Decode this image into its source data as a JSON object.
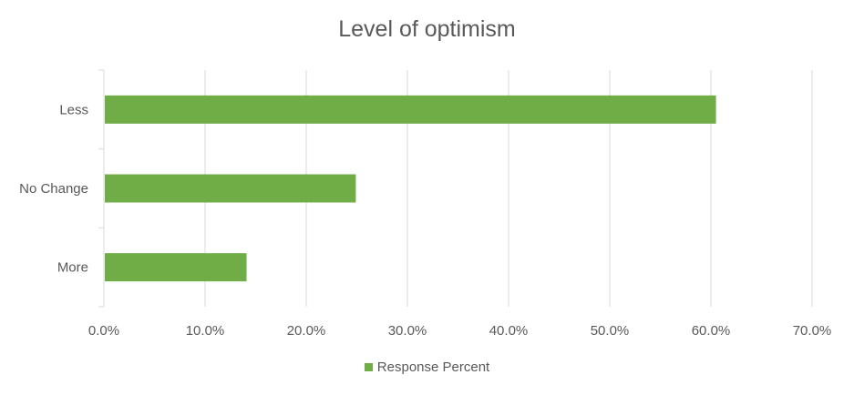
{
  "chart_data": {
    "type": "bar",
    "orientation": "horizontal",
    "title": "Level of optimism",
    "categories": [
      "Less",
      "No Change",
      "More"
    ],
    "series": [
      {
        "name": "Response Percent",
        "values": [
          60.5,
          24.9,
          14.1
        ],
        "color": "#70AD47"
      }
    ],
    "xlim": [
      0,
      70
    ],
    "x_ticks": [
      "0.0%",
      "10.0%",
      "20.0%",
      "30.0%",
      "40.0%",
      "50.0%",
      "60.0%",
      "70.0%"
    ],
    "grid": "vertical",
    "legend_position": "bottom"
  }
}
